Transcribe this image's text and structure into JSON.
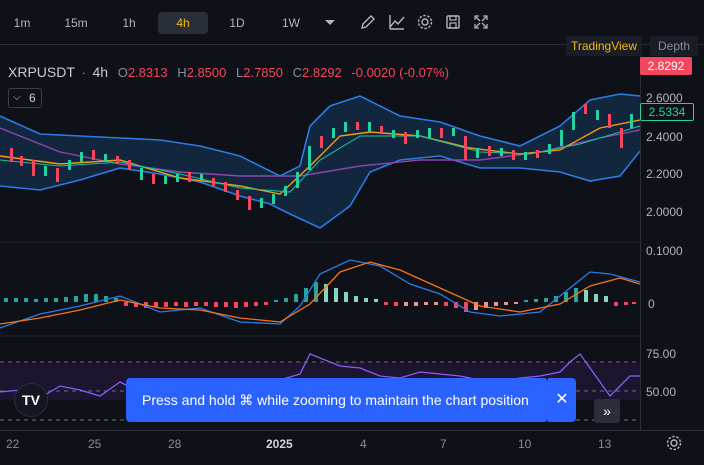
{
  "toolbar": {
    "timeframes": [
      "1m",
      "15m",
      "1h",
      "4h",
      "1D",
      "1W"
    ],
    "active_timeframe": "4h",
    "icons": [
      "chevron-down-icon",
      "draw-pencil-icon",
      "indicators-icon",
      "settings-icon",
      "save-icon",
      "fullscreen-icon"
    ]
  },
  "tabs": {
    "tradingview": "TradingView",
    "depth": "Depth"
  },
  "legend": {
    "symbol": "XRPUSDT",
    "sep": "·",
    "interval": "4h",
    "o_label": "O",
    "o_value": "2.8313",
    "h_label": "H",
    "h_value": "2.8500",
    "l_label": "L",
    "l_value": "2.7850",
    "c_label": "C",
    "c_value": "2.8292",
    "change": "-0.0020 (-0.07%)"
  },
  "indicator_button": {
    "count": "6"
  },
  "price_axis": {
    "current_price": "2.8292",
    "marker_price": "2.5334",
    "ticks": [
      "2.6000",
      "2.4000",
      "2.2000",
      "2.0000"
    ],
    "macd_ticks": [
      "0.1000",
      "0"
    ],
    "rsi_ticks": [
      "75.00",
      "50.00"
    ]
  },
  "date_axis": {
    "labels": [
      "22",
      "25",
      "28",
      "2025",
      "4",
      "7",
      "10",
      "13"
    ]
  },
  "toast": {
    "message": "Press and hold ⌘ while zooming to maintain the chart position",
    "close": "✕"
  },
  "logo": {
    "text": "TV"
  },
  "colors": {
    "up": "#26d0a3",
    "down": "#f6465d",
    "accent": "#f0b90b",
    "toast": "#2962ff",
    "band": "#1e6ee8"
  }
}
